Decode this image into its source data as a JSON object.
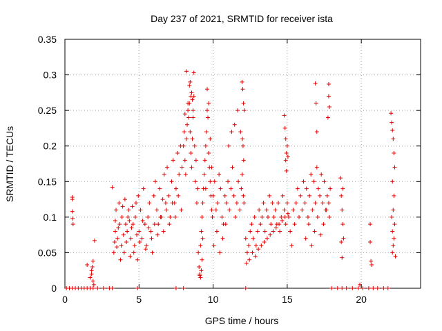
{
  "chart_data": {
    "type": "scatter",
    "title": "Day 237 of 2021, SRMTID for receiver ista",
    "xlabel": "GPS time / hours",
    "ylabel": "SRMTID / TECUs",
    "xlim": [
      0,
      24
    ],
    "ylim": [
      0,
      0.35
    ],
    "x_ticks": [
      0,
      5,
      10,
      15,
      20
    ],
    "y_ticks": [
      0,
      0.05,
      0.1,
      0.15,
      0.2,
      0.25,
      0.3,
      0.35
    ],
    "x_tick_labels": [
      "0",
      "5",
      "10",
      "15",
      "20"
    ],
    "y_tick_labels": [
      "0",
      "0.05",
      "0.1",
      "0.15",
      "0.2",
      "0.25",
      "0.3",
      "0.35"
    ],
    "grid": true,
    "marker": "+",
    "marker_color": "#e00000",
    "series": [
      {
        "x": [
          0.1,
          0.3,
          0.5,
          0.7,
          0.9,
          1.1,
          1.3,
          1.5,
          1.7,
          1.9,
          2.2,
          2.6,
          3.0,
          3.2,
          4.9,
          7.5,
          8.0,
          12.2,
          18.0,
          18.4,
          18.7,
          19.0,
          19.4,
          19.8,
          20.1,
          20.5,
          20.8,
          21.1,
          21.5,
          21.8,
          0.5,
          0.5,
          0.52,
          0.55,
          0.5,
          1.5,
          1.8,
          1.85,
          1.9,
          1.9,
          1.95,
          2.0,
          1.8,
          1.7,
          3.2,
          3.3,
          3.35,
          3.4,
          3.4,
          3.45,
          3.5,
          3.55,
          3.6,
          3.65,
          3.7,
          3.75,
          3.8,
          3.85,
          3.9,
          3.95,
          4.0,
          4.05,
          4.1,
          4.15,
          4.2,
          4.25,
          4.3,
          4.35,
          4.4,
          4.45,
          4.5,
          4.55,
          4.6,
          4.65,
          4.7,
          4.75,
          4.8,
          4.85,
          4.9,
          4.95,
          5.0,
          5.1,
          5.2,
          5.3,
          5.4,
          5.5,
          5.6,
          5.7,
          5.8,
          5.9,
          6.0,
          6.1,
          6.2,
          6.3,
          6.4,
          6.5,
          6.6,
          6.7,
          6.8,
          6.9,
          7.0,
          7.1,
          7.2,
          7.3,
          7.4,
          7.5,
          7.6,
          7.7,
          7.8,
          7.9,
          5.05,
          5.25,
          5.45,
          5.65,
          5.85,
          6.05,
          6.25,
          6.45,
          6.65,
          6.85,
          7.05,
          7.25,
          7.45,
          7.65,
          7.85,
          8.0,
          8.05,
          8.1,
          8.15,
          8.2,
          8.25,
          8.3,
          8.35,
          8.4,
          8.45,
          8.5,
          8.55,
          8.6,
          8.65,
          8.7,
          8.75,
          8.8,
          8.85,
          8.9,
          8.95,
          8.2,
          8.4,
          8.5,
          8.6,
          8.7,
          8.3,
          8.1,
          8.45,
          8.65,
          8.55,
          9.0,
          9.05,
          9.1,
          9.15,
          9.2,
          9.25,
          9.3,
          9.35,
          9.4,
          9.45,
          9.5,
          9.55,
          9.6,
          9.65,
          9.7,
          9.75,
          9.8,
          9.85,
          9.9,
          9.95,
          9.1,
          9.15,
          9.2,
          9.25,
          9.3,
          9.6,
          9.7,
          9.8,
          9.9,
          9.5,
          10.0,
          10.1,
          10.2,
          10.3,
          10.4,
          10.5,
          10.6,
          10.7,
          10.8,
          10.9,
          11.0,
          11.1,
          11.2,
          11.3,
          11.4,
          11.5,
          11.6,
          11.7,
          11.8,
          11.9,
          10.05,
          10.25,
          10.45,
          10.65,
          10.85,
          11.05,
          11.25,
          11.45,
          11.65,
          11.85,
          11.95,
          12.0,
          12.05,
          12.1,
          11.98,
          12.02,
          12.06,
          11.96,
          12.04,
          12.08,
          12.2,
          12.3,
          12.4,
          12.5,
          12.6,
          12.7,
          12.8,
          12.9,
          13.0,
          13.1,
          13.2,
          13.3,
          13.4,
          13.5,
          13.6,
          13.7,
          13.8,
          13.9,
          14.0,
          14.1,
          14.2,
          14.3,
          14.4,
          14.5,
          14.6,
          14.7,
          14.8,
          14.9,
          15.0,
          15.1,
          15.2,
          15.3,
          15.4,
          15.5,
          15.6,
          15.7,
          15.8,
          15.9,
          16.0,
          16.1,
          12.25,
          12.45,
          12.65,
          12.85,
          13.05,
          13.25,
          13.45,
          13.65,
          13.85,
          14.05,
          14.25,
          14.45,
          14.65,
          14.85,
          15.05,
          14.8,
          14.85,
          14.9,
          14.95,
          15.0,
          14.9,
          14.95,
          15.05,
          16.2,
          16.3,
          16.4,
          16.5,
          16.6,
          16.7,
          16.8,
          16.9,
          17.0,
          17.1,
          17.2,
          17.3,
          17.4,
          17.5,
          17.6,
          17.7,
          17.8,
          17.9,
          16.25,
          16.45,
          16.65,
          16.85,
          17.05,
          17.25,
          17.45,
          17.65,
          17.85,
          16.9,
          16.95,
          17.0,
          17.8,
          17.8,
          17.85,
          17.75,
          18.6,
          18.65,
          18.7,
          18.75,
          18.8,
          18.7,
          18.65,
          18.75,
          19.9,
          20.6,
          20.6,
          20.65,
          20.7,
          22.0,
          22.05,
          22.1,
          22.15,
          22.2,
          22.25,
          22.1,
          22.2,
          22.15,
          22.05,
          22.25,
          22.1,
          22.2,
          22.15,
          22.1,
          22.3
        ],
        "y": [
          0,
          0,
          0,
          0,
          0,
          0,
          0,
          0,
          0,
          0,
          0,
          0,
          0,
          0,
          0,
          0,
          0,
          0,
          0,
          0,
          0,
          0,
          0,
          0,
          0,
          0,
          0,
          0,
          0,
          0,
          0.128,
          0.108,
          0.098,
          0.09,
          0.125,
          0.033,
          0.02,
          0.03,
          0.038,
          0.01,
          0.005,
          0.067,
          0.025,
          0.015,
          0.142,
          0.05,
          0.065,
          0.08,
          0.095,
          0.11,
          0.058,
          0.07,
          0.085,
          0.12,
          0.09,
          0.04,
          0.06,
          0.1,
          0.115,
          0.075,
          0.05,
          0.125,
          0.09,
          0.065,
          0.08,
          0.1,
          0.11,
          0.095,
          0.045,
          0.07,
          0.085,
          0.115,
          0.09,
          0.05,
          0.06,
          0.1,
          0.12,
          0.075,
          0.04,
          0.13,
          0.08,
          0.11,
          0.07,
          0.14,
          0.09,
          0.06,
          0.1,
          0.12,
          0.08,
          0.05,
          0.13,
          0.15,
          0.11,
          0.09,
          0.14,
          0.1,
          0.125,
          0.16,
          0.12,
          0.17,
          0.13,
          0.1,
          0.15,
          0.18,
          0.12,
          0.14,
          0.19,
          0.16,
          0.2,
          0.17,
          0.065,
          0.095,
          0.055,
          0.085,
          0.07,
          0.09,
          0.075,
          0.1,
          0.08,
          0.11,
          0.09,
          0.12,
          0.1,
          0.13,
          0.11,
          0.2,
          0.22,
          0.18,
          0.16,
          0.21,
          0.23,
          0.25,
          0.24,
          0.26,
          0.22,
          0.19,
          0.17,
          0.21,
          0.24,
          0.27,
          0.2,
          0.15,
          0.18,
          0.12,
          0.14,
          0.305,
          0.285,
          0.27,
          0.265,
          0.303,
          0.26,
          0.245,
          0.29,
          0.25,
          0.275,
          0.05,
          0.03,
          0.02,
          0.06,
          0.08,
          0.1,
          0.12,
          0.14,
          0.16,
          0.18,
          0.2,
          0.22,
          0.25,
          0.24,
          0.19,
          0.17,
          0.15,
          0.13,
          0.11,
          0.1,
          0.018,
          0.015,
          0.025,
          0.04,
          0.07,
          0.28,
          0.26,
          0.21,
          0.17,
          0.14,
          0.13,
          0.15,
          0.11,
          0.12,
          0.16,
          0.14,
          0.1,
          0.09,
          0.13,
          0.12,
          0.15,
          0.11,
          0.14,
          0.17,
          0.13,
          0.1,
          0.12,
          0.15,
          0.11,
          0.14,
          0.06,
          0.08,
          0.05,
          0.07,
          0.09,
          0.2,
          0.22,
          0.23,
          0.25,
          0.22,
          0.29,
          0.28,
          0.26,
          0.25,
          0.21,
          0.2,
          0.18,
          0.16,
          0.13,
          0.12,
          0.07,
          0.05,
          0.06,
          0.08,
          0.09,
          0.07,
          0.1,
          0.06,
          0.08,
          0.11,
          0.09,
          0.1,
          0.12,
          0.08,
          0.11,
          0.1,
          0.13,
          0.09,
          0.12,
          0.1,
          0.11,
          0.09,
          0.12,
          0.08,
          0.1,
          0.13,
          0.11,
          0.09,
          0.12,
          0.1,
          0.08,
          0.06,
          0.11,
          0.09,
          0.12,
          0.14,
          0.1,
          0.13,
          0.11,
          0.15,
          0.035,
          0.04,
          0.05,
          0.045,
          0.055,
          0.06,
          0.065,
          0.07,
          0.075,
          0.08,
          0.085,
          0.09,
          0.095,
          0.1,
          0.105,
          0.243,
          0.225,
          0.21,
          0.19,
          0.2,
          0.18,
          0.165,
          0.185,
          0.12,
          0.14,
          0.1,
          0.13,
          0.16,
          0.11,
          0.15,
          0.12,
          0.17,
          0.14,
          0.13,
          0.16,
          0.12,
          0.15,
          0.11,
          0.13,
          0.12,
          0.14,
          0.07,
          0.09,
          0.06,
          0.08,
          0.1,
          0.075,
          0.09,
          0.11,
          0.1,
          0.288,
          0.26,
          0.22,
          0.287,
          0.27,
          0.255,
          0.24,
          0.155,
          0.13,
          0.11,
          0.09,
          0.07,
          0.043,
          0.065,
          0.14,
          0.005,
          0.09,
          0.065,
          0.038,
          0.033,
          0.246,
          0.233,
          0.222,
          0.21,
          0.19,
          0.17,
          0.15,
          0.13,
          0.11,
          0.1,
          0.09,
          0.08,
          0.07,
          0.06,
          0.05,
          0.045
        ]
      }
    ]
  }
}
